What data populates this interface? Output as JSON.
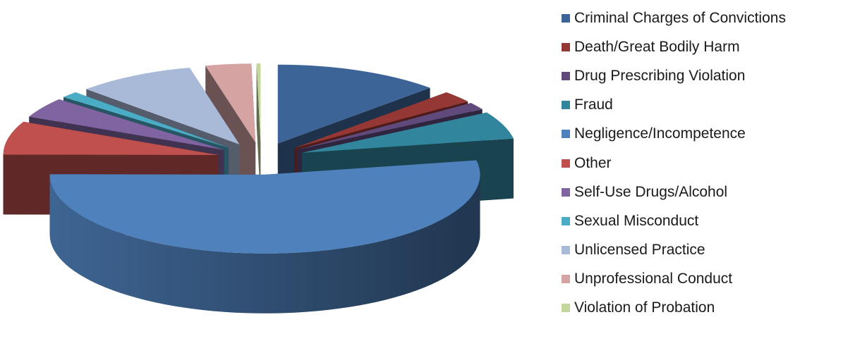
{
  "chart_data": {
    "type": "pie",
    "style": "3d-exploded",
    "title": "",
    "legend_position": "right",
    "series": [
      {
        "label": "Criminal Charges of Convictions",
        "value": 12.4,
        "color": "#3C6496"
      },
      {
        "label": "Death/Great Bodily Harm",
        "value": 2.4,
        "color": "#953735"
      },
      {
        "label": "Drug Prescribing Violation",
        "value": 1.5,
        "color": "#604A7B"
      },
      {
        "label": "Fraud",
        "value": 5.6,
        "color": "#31859C"
      },
      {
        "label": "Negligence/Incompetence",
        "value": 52.5,
        "color": "#4F81BD"
      },
      {
        "label": "Other",
        "value": 6.8,
        "color": "#C0504D"
      },
      {
        "label": "Self-Use Drugs/Alcohol",
        "value": 4.1,
        "color": "#8064A2"
      },
      {
        "label": "Sexual Misconduct",
        "value": 1.3,
        "color": "#4BACC6"
      },
      {
        "label": "Unlicensed Practice",
        "value": 8.8,
        "color": "#A9B9D8"
      },
      {
        "label": "Unprofessional Conduct",
        "value": 3.4,
        "color": "#D6A3A3"
      },
      {
        "label": "Violation of Probation",
        "value": 0.3,
        "color": "#C3D69B"
      }
    ]
  }
}
